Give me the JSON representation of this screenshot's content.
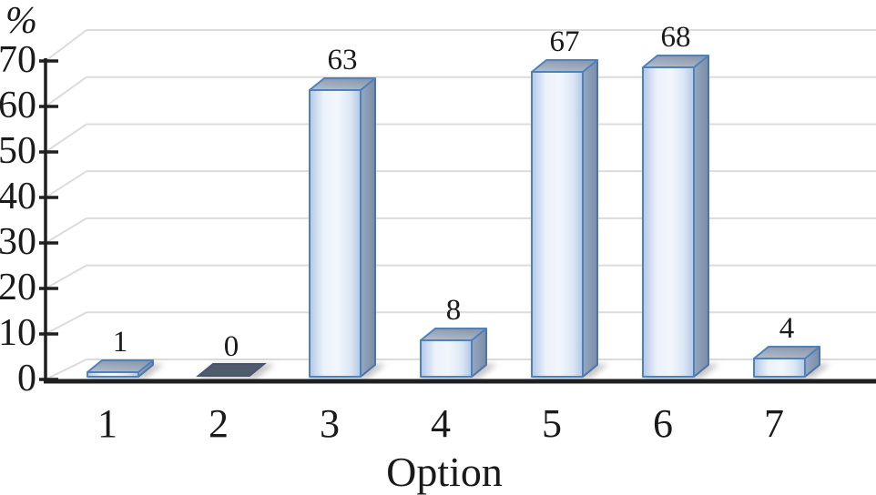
{
  "chart_data": {
    "type": "bar",
    "style": "3d-perspective",
    "title": "",
    "xlabel": "Option",
    "ylabel": "%",
    "categories": [
      "1",
      "2",
      "3",
      "4",
      "5",
      "6",
      "7"
    ],
    "values": [
      1,
      0,
      63,
      8,
      67,
      68,
      4
    ],
    "data_labels": [
      "1",
      "0",
      "63",
      "8",
      "67",
      "68",
      "4"
    ],
    "ylim": [
      0,
      70
    ],
    "ytick_step": 10,
    "ytick_labels": [
      "0",
      "10",
      "20",
      "30",
      "40",
      "50",
      "60",
      "70"
    ],
    "grid": true,
    "legend": false,
    "colors": {
      "bar_face_edge": "#b2c7e5",
      "bar_face_light": "#ecf2fb",
      "bar_face_mid": "#dce7f5",
      "bar_border": "#4f81bd",
      "bar_side_light": "#97a8c1",
      "bar_side_dark": "#7a8ca6",
      "bar_side_border": "#4c74a8",
      "bar_top_light": "#b4c0d0",
      "bar_top_dark": "#8d9aae",
      "zero_slab_fill": "#515c6b",
      "zero_slab_border": "#475572",
      "gridline": "#dcdcdc",
      "axis": "#1f1f1f",
      "text": "#1a1a1a",
      "shadow": "#8f8f8f"
    }
  }
}
